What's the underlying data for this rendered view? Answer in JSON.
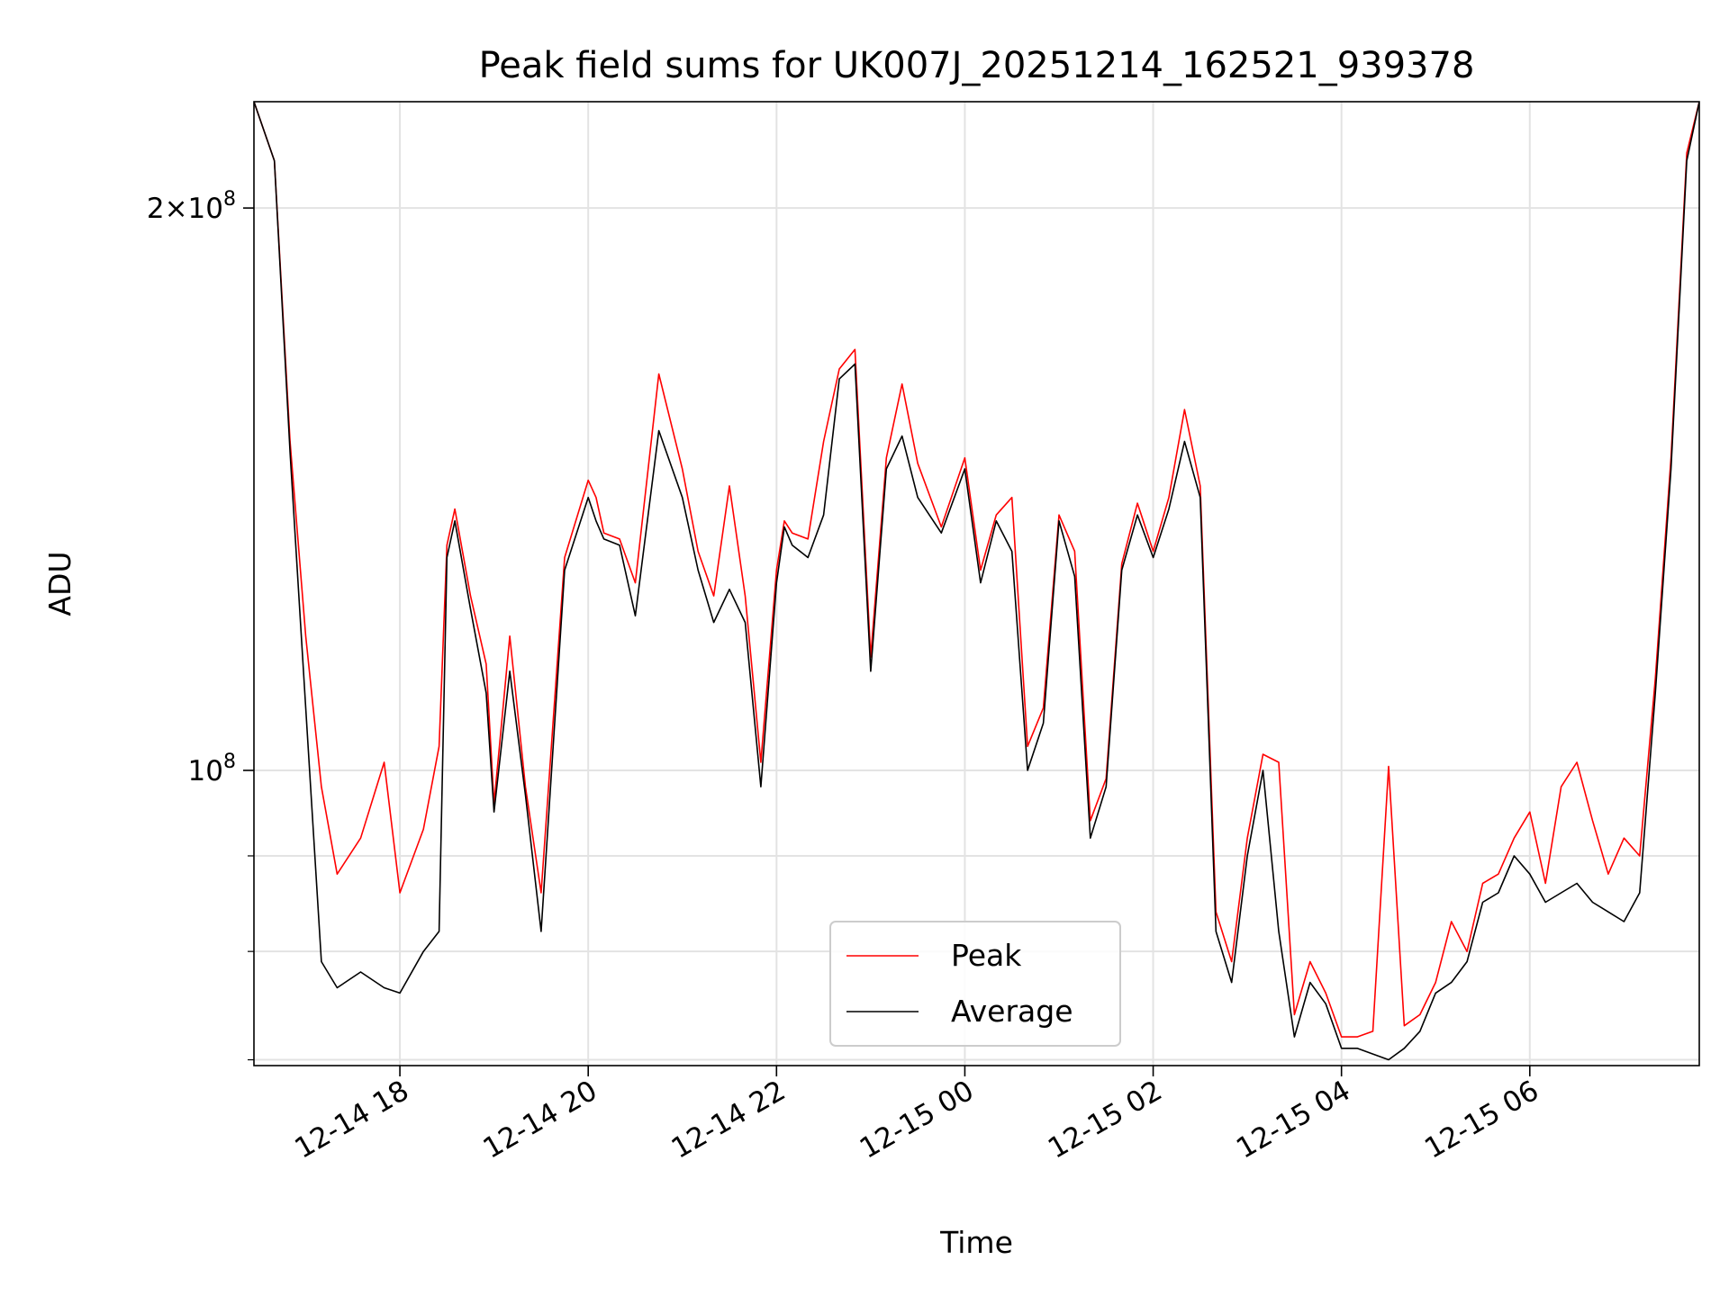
{
  "chart_data": {
    "type": "line",
    "title": "Peak field sums for UK007J_20251214_162521_939378",
    "xlabel": "Time",
    "ylabel": "ADU",
    "x_is_time": true,
    "xlim": [
      "2025-12-14T16:27",
      "2025-12-15T07:48"
    ],
    "ylim": [
      69500000,
      228000000
    ],
    "yscale": "log",
    "grid": true,
    "legend_position": "lower center",
    "x_tick_labels": [
      {
        "t": "2025-12-14T18:00",
        "label": "12-14 18"
      },
      {
        "t": "2025-12-14T20:00",
        "label": "12-14 20"
      },
      {
        "t": "2025-12-14T22:00",
        "label": "12-14 22"
      },
      {
        "t": "2025-12-15T00:00",
        "label": "12-15 00"
      },
      {
        "t": "2025-12-15T02:00",
        "label": "12-15 02"
      },
      {
        "t": "2025-12-15T04:00",
        "label": "12-15 04"
      },
      {
        "t": "2025-12-15T06:00",
        "label": "12-15 06"
      }
    ],
    "y_tick_labels": [
      {
        "v": 100000000,
        "label": "10^8"
      },
      {
        "v": 200000000,
        "label": "2×10^8"
      }
    ],
    "y_minor_ticks": [
      70000000,
      80000000,
      90000000
    ],
    "series": [
      {
        "name": "Average",
        "color": "#000000",
        "x": [
          "2025-12-14T16:27",
          "2025-12-14T16:40",
          "2025-12-14T16:50",
          "2025-12-14T17:00",
          "2025-12-14T17:10",
          "2025-12-14T17:20",
          "2025-12-14T17:35",
          "2025-12-14T17:50",
          "2025-12-14T18:00",
          "2025-12-14T18:15",
          "2025-12-14T18:25",
          "2025-12-14T18:30",
          "2025-12-14T18:35",
          "2025-12-14T18:45",
          "2025-12-14T18:55",
          "2025-12-14T19:00",
          "2025-12-14T19:10",
          "2025-12-14T19:20",
          "2025-12-14T19:30",
          "2025-12-14T19:45",
          "2025-12-14T20:00",
          "2025-12-14T20:05",
          "2025-12-14T20:10",
          "2025-12-14T20:20",
          "2025-12-14T20:30",
          "2025-12-14T20:45",
          "2025-12-14T21:00",
          "2025-12-14T21:10",
          "2025-12-14T21:20",
          "2025-12-14T21:30",
          "2025-12-14T21:40",
          "2025-12-14T21:50",
          "2025-12-14T22:00",
          "2025-12-14T22:05",
          "2025-12-14T22:10",
          "2025-12-14T22:20",
          "2025-12-14T22:30",
          "2025-12-14T22:40",
          "2025-12-14T22:50",
          "2025-12-14T23:00",
          "2025-12-14T23:10",
          "2025-12-14T23:20",
          "2025-12-14T23:30",
          "2025-12-14T23:45",
          "2025-12-15T00:00",
          "2025-12-15T00:10",
          "2025-12-15T00:20",
          "2025-12-15T00:30",
          "2025-12-15T00:40",
          "2025-12-15T00:50",
          "2025-12-15T01:00",
          "2025-12-15T01:10",
          "2025-12-15T01:20",
          "2025-12-15T01:30",
          "2025-12-15T01:40",
          "2025-12-15T01:50",
          "2025-12-15T02:00",
          "2025-12-15T02:10",
          "2025-12-15T02:20",
          "2025-12-15T02:30",
          "2025-12-15T02:40",
          "2025-12-15T02:50",
          "2025-12-15T03:00",
          "2025-12-15T03:10",
          "2025-12-15T03:20",
          "2025-12-15T03:30",
          "2025-12-15T03:40",
          "2025-12-15T03:50",
          "2025-12-15T04:00",
          "2025-12-15T04:10",
          "2025-12-15T04:20",
          "2025-12-15T04:30",
          "2025-12-15T04:40",
          "2025-12-15T04:50",
          "2025-12-15T05:00",
          "2025-12-15T05:10",
          "2025-12-15T05:20",
          "2025-12-15T05:30",
          "2025-12-15T05:40",
          "2025-12-15T05:50",
          "2025-12-15T06:00",
          "2025-12-15T06:10",
          "2025-12-15T06:20",
          "2025-12-15T06:30",
          "2025-12-15T06:40",
          "2025-12-15T06:50",
          "2025-12-15T07:00",
          "2025-12-15T07:10",
          "2025-12-15T07:20",
          "2025-12-15T07:30",
          "2025-12-15T07:40",
          "2025-12-15T07:48"
        ],
        "values": [
          228000000,
          212000000,
          148000000,
          108000000,
          79000000,
          76500000,
          78000000,
          76500000,
          76000000,
          80000000,
          82000000,
          130000000,
          136000000,
          122000000,
          110000000,
          95000000,
          113000000,
          97000000,
          82000000,
          128000000,
          140000000,
          136000000,
          133000000,
          132000000,
          121000000,
          152000000,
          140000000,
          128000000,
          120000000,
          125000000,
          120000000,
          98000000,
          126000000,
          135000000,
          132000000,
          130000000,
          137000000,
          162000000,
          165000000,
          113000000,
          145000000,
          151000000,
          140000000,
          134000000,
          145000000,
          126000000,
          136000000,
          131000000,
          100000000,
          106000000,
          136000000,
          127000000,
          92000000,
          98000000,
          128000000,
          137000000,
          130000000,
          138000000,
          150000000,
          140000000,
          82000000,
          77000000,
          90000000,
          100000000,
          82000000,
          72000000,
          77000000,
          75000000,
          71000000,
          71000000,
          70500000,
          70000000,
          71000000,
          72500000,
          76000000,
          77000000,
          79000000,
          85000000,
          86000000,
          90000000,
          88000000,
          85000000,
          86000000,
          87000000,
          85000000,
          84000000,
          83000000,
          86000000,
          110000000,
          145000000,
          212000000,
          228000000
        ]
      },
      {
        "name": "Peak",
        "color": "#ff0000",
        "x": [
          "2025-12-14T16:27",
          "2025-12-14T16:40",
          "2025-12-14T16:50",
          "2025-12-14T17:00",
          "2025-12-14T17:10",
          "2025-12-14T17:20",
          "2025-12-14T17:35",
          "2025-12-14T17:50",
          "2025-12-14T18:00",
          "2025-12-14T18:15",
          "2025-12-14T18:25",
          "2025-12-14T18:30",
          "2025-12-14T18:35",
          "2025-12-14T18:45",
          "2025-12-14T18:55",
          "2025-12-14T19:00",
          "2025-12-14T19:10",
          "2025-12-14T19:20",
          "2025-12-14T19:30",
          "2025-12-14T19:45",
          "2025-12-14T20:00",
          "2025-12-14T20:05",
          "2025-12-14T20:10",
          "2025-12-14T20:20",
          "2025-12-14T20:30",
          "2025-12-14T20:45",
          "2025-12-14T21:00",
          "2025-12-14T21:10",
          "2025-12-14T21:20",
          "2025-12-14T21:30",
          "2025-12-14T21:40",
          "2025-12-14T21:50",
          "2025-12-14T22:00",
          "2025-12-14T22:05",
          "2025-12-14T22:10",
          "2025-12-14T22:20",
          "2025-12-14T22:30",
          "2025-12-14T22:40",
          "2025-12-14T22:50",
          "2025-12-14T23:00",
          "2025-12-14T23:10",
          "2025-12-14T23:20",
          "2025-12-14T23:30",
          "2025-12-14T23:45",
          "2025-12-15T00:00",
          "2025-12-15T00:10",
          "2025-12-15T00:20",
          "2025-12-15T00:30",
          "2025-12-15T00:40",
          "2025-12-15T00:50",
          "2025-12-15T01:00",
          "2025-12-15T01:10",
          "2025-12-15T01:20",
          "2025-12-15T01:30",
          "2025-12-15T01:40",
          "2025-12-15T01:50",
          "2025-12-15T02:00",
          "2025-12-15T02:10",
          "2025-12-15T02:20",
          "2025-12-15T02:30",
          "2025-12-15T02:40",
          "2025-12-15T02:50",
          "2025-12-15T03:00",
          "2025-12-15T03:10",
          "2025-12-15T03:20",
          "2025-12-15T03:30",
          "2025-12-15T03:40",
          "2025-12-15T03:50",
          "2025-12-15T04:00",
          "2025-12-15T04:10",
          "2025-12-15T04:20",
          "2025-12-15T04:30",
          "2025-12-15T04:40",
          "2025-12-15T04:50",
          "2025-12-15T05:00",
          "2025-12-15T05:10",
          "2025-12-15T05:20",
          "2025-12-15T05:30",
          "2025-12-15T05:40",
          "2025-12-15T05:50",
          "2025-12-15T06:00",
          "2025-12-15T06:10",
          "2025-12-15T06:20",
          "2025-12-15T06:30",
          "2025-12-15T06:40",
          "2025-12-15T06:50",
          "2025-12-15T07:00",
          "2025-12-15T07:10",
          "2025-12-15T07:20",
          "2025-12-15T07:30",
          "2025-12-15T07:40",
          "2025-12-15T07:48"
        ],
        "values": [
          228000000,
          212000000,
          150000000,
          118000000,
          98000000,
          88000000,
          92000000,
          101000000,
          86000000,
          93000000,
          103000000,
          132000000,
          138000000,
          124000000,
          114000000,
          96000000,
          118000000,
          98000000,
          86000000,
          130000000,
          143000000,
          140000000,
          134000000,
          133000000,
          126000000,
          163000000,
          145000000,
          131000000,
          124000000,
          142000000,
          124000000,
          101000000,
          128000000,
          136000000,
          134000000,
          133000000,
          150000000,
          164000000,
          168000000,
          115000000,
          147000000,
          161000000,
          146000000,
          135000000,
          147000000,
          128000000,
          137000000,
          140000000,
          103000000,
          108000000,
          137000000,
          131000000,
          94000000,
          99000000,
          129000000,
          139000000,
          131000000,
          140000000,
          156000000,
          142000000,
          84000000,
          79000000,
          92000000,
          102000000,
          101000000,
          74000000,
          79000000,
          76000000,
          72000000,
          72000000,
          72500000,
          100500000,
          73000000,
          74000000,
          77000000,
          83000000,
          80000000,
          87000000,
          88000000,
          92000000,
          95000000,
          87000000,
          98000000,
          101000000,
          94000000,
          88000000,
          92000000,
          90000000,
          112000000,
          147000000,
          214000000,
          228000000
        ]
      }
    ]
  }
}
